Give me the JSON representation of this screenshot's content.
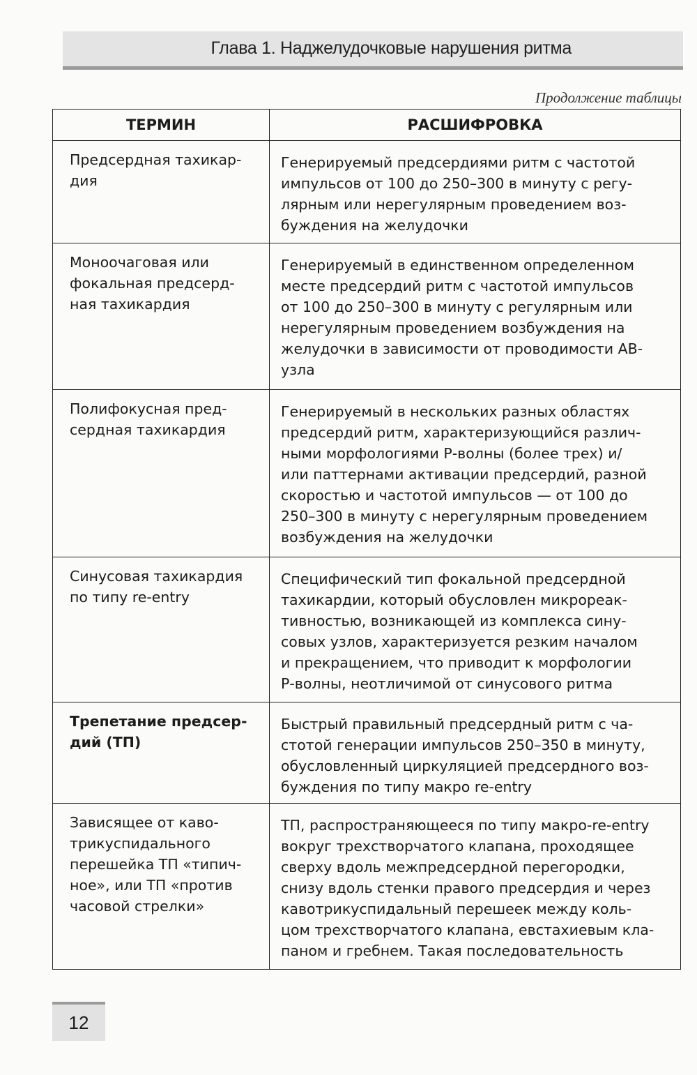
{
  "header": {
    "title": "Глава 1. Наджелудочковые нарушения ритма"
  },
  "continued_label": "Продолжение таблицы",
  "table": {
    "columns": [
      "ТЕРМИН",
      "РАСШИФРОВКА"
    ],
    "rows": [
      {
        "bold": false,
        "term": [
          "Предсердная тахикар-",
          "дия"
        ],
        "definition": [
          "Генерируемый предсердиями ритм с частотой",
          "импульсов от 100 до 250–300 в минуту с регу-",
          "лярным или нерегулярным проведением воз-",
          "буждения на желудочки"
        ]
      },
      {
        "bold": false,
        "term": [
          "Моноочаговая или",
          "фокальная предсерд-",
          "ная тахикардия"
        ],
        "definition": [
          "Генерируемый в единственном определенном",
          "месте предсердий ритм с частотой импульсов",
          "от 100 до 250–300 в минуту с регулярным или",
          "нерегулярным проведением возбуждения на",
          "желудочки в зависимости от проводимости АВ-",
          "узла"
        ]
      },
      {
        "bold": false,
        "term": [
          "Полифокусная пред-",
          "сердная тахикардия"
        ],
        "definition": [
          "Генерируемый в нескольких разных областях",
          "предсердий ритм, характеризующийся различ-",
          "ными морфологиями Р-волны (более трех) и/",
          "или паттернами активации предсердий, разной",
          "скоростью и частотой импульсов — от 100 до",
          "250–300 в минуту с нерегулярным проведением",
          "возбуждения на желудочки"
        ]
      },
      {
        "bold": false,
        "term": [
          "Синусовая тахикардия",
          "по типу re-entry"
        ],
        "definition": [
          "Специфический тип фокальной предсердной",
          "тахикардии, который обусловлен микрореак-",
          "тивностью, возникающей из комплекса сину-",
          "совых узлов, характеризуется резким началом",
          "и прекращением, что приводит к морфологии",
          "Р-волны, неотличимой от синусового ритма"
        ]
      },
      {
        "bold": true,
        "term": [
          "Трепетание предсер-",
          "дий (ТП)"
        ],
        "definition": [
          "Быстрый правильный предсердный ритм с ча-",
          "стотой генерации импульсов 250–350 в минуту,",
          "обусловленный циркуляцией предсердного воз-",
          "буждения по типу макро re-entry"
        ]
      },
      {
        "bold": false,
        "term": [
          "Зависящее от каво-",
          "трикуспидального",
          "перешейка ТП «типич-",
          "ное», или ТП «против",
          "часовой стрелки»"
        ],
        "definition": [
          "ТП, распространяющееся по типу макро-re-entry",
          "вокруг трехстворчатого клапана, проходящее",
          "сверху вдоль межпредсердной перегородки,",
          "снизу вдоль стенки правого предсердия и через",
          "кавотрикуспидальный перешеек между коль-",
          "цом трехстворчатого клапана, евстахиевым кла-",
          "паном и гребнем. Такая последовательность"
        ]
      }
    ]
  },
  "page_number": "12"
}
